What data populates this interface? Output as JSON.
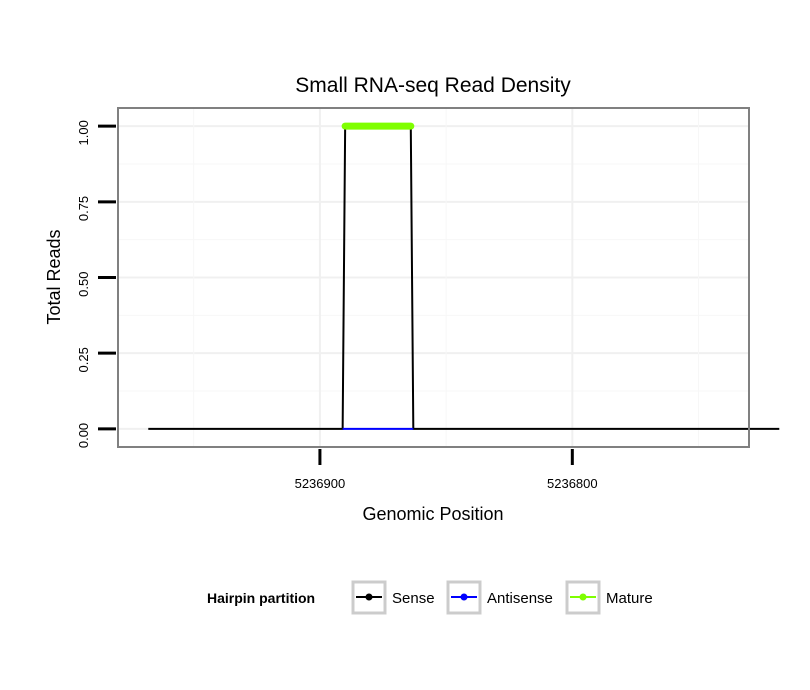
{
  "chart_data": {
    "type": "line",
    "title": "Small RNA-seq Read Density",
    "xlabel": "Genomic Position",
    "ylabel": "Total Reads",
    "x_reversed": true,
    "xlim": [
      5236980,
      5236730
    ],
    "ylim": [
      -0.06,
      1.06
    ],
    "x_ticks": [
      5236900,
      5236800
    ],
    "x_tick_labels": [
      "5236900",
      "5236800"
    ],
    "y_ticks": [
      0,
      0.25,
      0.5,
      0.75,
      1.0
    ],
    "y_tick_labels": [
      "0.00",
      "0.25",
      "0.50",
      "0.75",
      "1.00"
    ],
    "grid": true,
    "legend": {
      "title": "Hairpin partition",
      "position": "bottom",
      "entries": [
        "Sense",
        "Antisense",
        "Mature"
      ]
    },
    "series": [
      {
        "name": "Sense",
        "color": "#000000",
        "x": [
          5236968,
          5236891,
          5236890,
          5236864,
          5236863,
          5236718
        ],
        "y": [
          0,
          0,
          1,
          1,
          0,
          0
        ]
      },
      {
        "name": "Antisense",
        "color": "#0000ff",
        "x": [
          5236891,
          5236863
        ],
        "y": [
          0,
          0
        ]
      },
      {
        "name": "Mature",
        "color": "#7fff00",
        "x": [
          5236890,
          5236864
        ],
        "y": [
          1,
          1
        ]
      }
    ]
  }
}
